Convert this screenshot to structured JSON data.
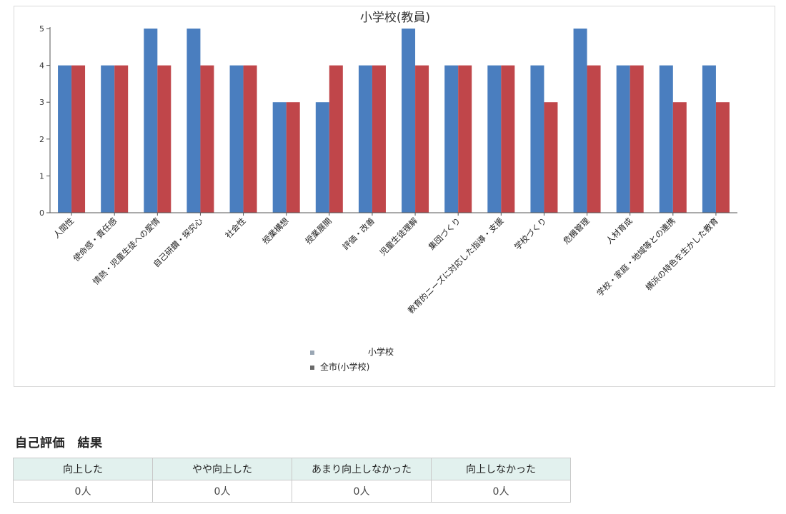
{
  "chart_data": {
    "type": "bar",
    "title": "小学校(教員)",
    "categories": [
      "人間性",
      "使命感・責任感",
      "情熱・児童生徒への愛情",
      "自己研鑽・探究心",
      "社会性",
      "授業構想",
      "授業展開",
      "評価・改善",
      "児童生徒理解",
      "集団づくり",
      "教育的ニーズに対応した指導・支援",
      "学校づくり",
      "危機管理",
      "人材育成",
      "学校・家庭・地域等との連携",
      "横浜の特色を生かした教育"
    ],
    "series": [
      {
        "name": "小学校",
        "color": "#4a7ebf",
        "values": [
          4,
          4,
          5,
          5,
          4,
          3,
          3,
          4,
          5,
          4,
          4,
          4,
          5,
          4,
          4,
          4
        ]
      },
      {
        "name": "全市(小学校)",
        "color": "#c0464a",
        "values": [
          4,
          4,
          4,
          4,
          4,
          3,
          4,
          4,
          4,
          4,
          4,
          3,
          4,
          4,
          3,
          3
        ]
      }
    ],
    "ylim": [
      0,
      5
    ],
    "yticks": [
      0,
      1,
      2,
      3,
      4,
      5
    ],
    "xlabel": "",
    "ylabel": "",
    "legend_position": "bottom-center"
  },
  "result": {
    "title": "自己評価　結果",
    "headers": [
      "向上した",
      "やや向上した",
      "あまり向上しなかった",
      "向上しなかった"
    ],
    "values": [
      "0人",
      "0人",
      "0人",
      "0人"
    ]
  }
}
